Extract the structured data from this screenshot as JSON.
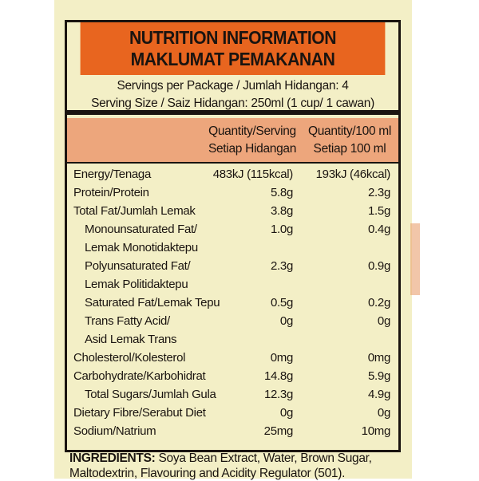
{
  "title": [
    "NUTRITION INFORMATION",
    "MAKLUMAT PEMAKANAN"
  ],
  "servings": [
    "Servings per Package / Jumlah Hidangan: 4",
    "Serving Size / Saiz Hidangan: 250ml (1 cup/ 1 cawan)"
  ],
  "columns": {
    "serving": [
      "Quantity/Serving",
      "Setiap Hidangan"
    ],
    "per100": [
      "Quantity/100 ml",
      "Setiap 100 ml"
    ]
  },
  "rows": [
    {
      "name": "Energy/Tenaga",
      "serving": "483kJ (115kcal)",
      "per100": "193kJ (46kcal)"
    },
    {
      "name": "Protein/Protein",
      "serving": "5.8g",
      "per100": "2.3g"
    },
    {
      "name": "Total Fat/Jumlah Lemak",
      "serving": "3.8g",
      "per100": "1.5g"
    },
    {
      "name": "Monounsaturated Fat/",
      "serving": "1.0g",
      "per100": "0.4g",
      "indent": true
    },
    {
      "name": "Lemak Monotidaktepu",
      "serving": "",
      "per100": "",
      "indent": true
    },
    {
      "name": "Polyunsaturated Fat/",
      "serving": "2.3g",
      "per100": "0.9g",
      "indent": true
    },
    {
      "name": "Lemak Politidaktepu",
      "serving": "",
      "per100": "",
      "indent": true
    },
    {
      "name": "Saturated Fat/Lemak Tepu",
      "serving": "0.5g",
      "per100": "0.2g",
      "indent": true
    },
    {
      "name": "Trans Fatty Acid/",
      "serving": "0g",
      "per100": "0g",
      "indent": true
    },
    {
      "name": "Asid Lemak Trans",
      "serving": "",
      "per100": "",
      "indent": true
    },
    {
      "name": "Cholesterol/Kolesterol",
      "serving": "0mg",
      "per100": "0mg"
    },
    {
      "name": "Carbohydrate/Karbohidrat",
      "serving": "14.8g",
      "per100": "5.9g"
    },
    {
      "name": "Total Sugars/Jumlah Gula",
      "serving": "12.3g",
      "per100": "4.9g",
      "indent": true
    },
    {
      "name": "Dietary Fibre/Serabut Diet",
      "serving": "0g",
      "per100": "0g"
    },
    {
      "name": "Sodium/Natrium",
      "serving": "25mg",
      "per100": "10mg"
    }
  ],
  "ingredients": {
    "label": "INGREDIENTS:",
    "text": " Soya Bean Extract, Water, Brown Sugar, Maltodextrin, Flavouring and Acidity Regulator (501)."
  },
  "colors": {
    "header": "#e8651f",
    "subheader": "#eda67c",
    "background": "#f3efc6"
  }
}
